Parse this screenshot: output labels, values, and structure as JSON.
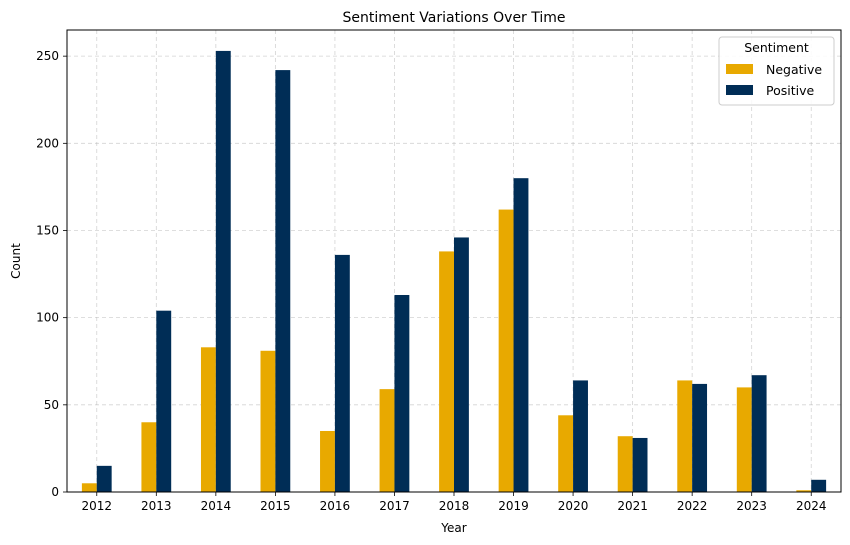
{
  "chart_data": {
    "type": "bar",
    "title": "Sentiment Variations Over Time",
    "xlabel": "Year",
    "ylabel": "Count",
    "categories": [
      "2012",
      "2013",
      "2014",
      "2015",
      "2016",
      "2017",
      "2018",
      "2019",
      "2020",
      "2021",
      "2022",
      "2023",
      "2024"
    ],
    "series": [
      {
        "name": "Negative",
        "color": "#E8A900",
        "values": [
          5,
          40,
          83,
          81,
          35,
          59,
          138,
          162,
          44,
          32,
          64,
          60,
          1
        ]
      },
      {
        "name": "Positive",
        "color": "#002D56",
        "values": [
          15,
          104,
          253,
          242,
          136,
          113,
          146,
          180,
          64,
          31,
          62,
          67,
          7
        ]
      }
    ],
    "ylim": [
      0,
      265
    ],
    "yticks": [
      0,
      50,
      100,
      150,
      200,
      250
    ],
    "grid": true,
    "legend": {
      "title": "Sentiment",
      "placement": "upper right"
    }
  }
}
